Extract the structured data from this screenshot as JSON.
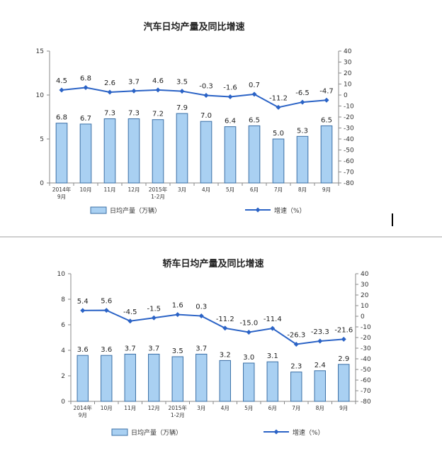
{
  "colors": {
    "bar_fill": "#a9d0f2",
    "bar_stroke": "#3a6fa6",
    "line": "#2b63c6",
    "axis": "#888888",
    "divider": "#a0a0a0"
  },
  "chart_data": [
    {
      "type": "bar",
      "title": "汽车日均产量及同比增速",
      "categories": [
        [
          "2014年",
          "9月"
        ],
        [
          "10月"
        ],
        [
          "11月"
        ],
        [
          "12月"
        ],
        [
          "2015年",
          "1-2月"
        ],
        [
          "3月"
        ],
        [
          "4月"
        ],
        [
          "5月"
        ],
        [
          "6月"
        ],
        [
          "7月"
        ],
        [
          "8月"
        ],
        [
          "9月"
        ]
      ],
      "left_axis": {
        "min": 0,
        "max": 15,
        "ticks": [
          0,
          5,
          10,
          15
        ]
      },
      "right_axis": {
        "min": -80,
        "max": 40,
        "ticks": [
          40,
          30,
          20,
          10,
          0,
          -10,
          -20,
          -30,
          -40,
          -50,
          -60,
          -70,
          -80
        ]
      },
      "series": [
        {
          "name": "日均产量（万辆）",
          "type": "bar",
          "axis": "left",
          "values": [
            6.8,
            6.7,
            7.3,
            7.3,
            7.2,
            7.9,
            7.0,
            6.4,
            6.5,
            5.0,
            5.3,
            6.5
          ]
        },
        {
          "name": "增速（%）",
          "type": "line",
          "axis": "right",
          "values": [
            4.5,
            6.8,
            2.6,
            3.7,
            4.6,
            3.5,
            -0.3,
            -1.6,
            0.7,
            -11.2,
            -6.5,
            -4.7
          ]
        }
      ],
      "legend_placement": "bottom"
    },
    {
      "type": "bar",
      "title": "轿车日均产量及同比增速",
      "categories": [
        [
          "2014年",
          "9月"
        ],
        [
          "10月"
        ],
        [
          "11月"
        ],
        [
          "12月"
        ],
        [
          "2015年",
          "1-2月"
        ],
        [
          "3月"
        ],
        [
          "4月"
        ],
        [
          "5月"
        ],
        [
          "6月"
        ],
        [
          "7月"
        ],
        [
          "8月"
        ],
        [
          "9月"
        ]
      ],
      "left_axis": {
        "min": 0,
        "max": 10,
        "ticks": [
          0,
          2,
          4,
          6,
          8,
          10
        ]
      },
      "right_axis": {
        "min": -80,
        "max": 40,
        "ticks": [
          40,
          30,
          20,
          10,
          0,
          -10,
          -20,
          -30,
          -40,
          -50,
          -60,
          -70,
          -80
        ]
      },
      "series": [
        {
          "name": "日均产量（万辆）",
          "type": "bar",
          "axis": "left",
          "values": [
            3.6,
            3.6,
            3.7,
            3.7,
            3.5,
            3.7,
            3.2,
            3.0,
            3.1,
            2.3,
            2.4,
            2.9
          ]
        },
        {
          "name": "增速（%）",
          "type": "line",
          "axis": "right",
          "values": [
            5.4,
            5.6,
            -4.5,
            -1.5,
            1.6,
            0.3,
            -11.2,
            -15.0,
            -11.4,
            -26.3,
            -23.3,
            -21.6
          ]
        }
      ],
      "legend_placement": "bottom"
    }
  ]
}
